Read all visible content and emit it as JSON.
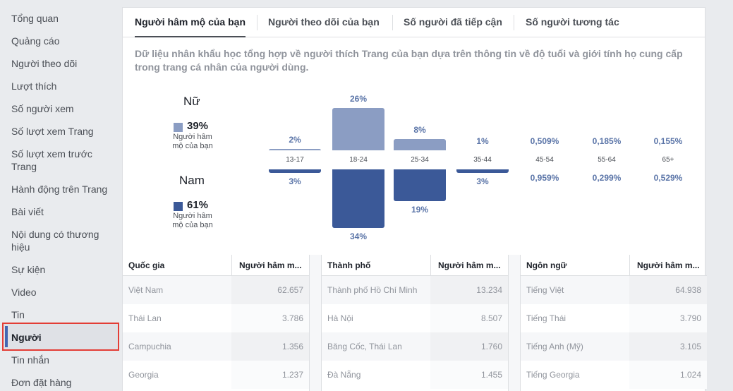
{
  "sidebar": {
    "items": [
      {
        "label": "Tổng quan"
      },
      {
        "label": "Quảng cáo"
      },
      {
        "label": "Người theo dõi"
      },
      {
        "label": "Lượt thích"
      },
      {
        "label": "Số người xem"
      },
      {
        "label": "Số lượt xem Trang"
      },
      {
        "label": "Số lượt xem trước Trang"
      },
      {
        "label": "Hành động trên Trang"
      },
      {
        "label": "Bài viết"
      },
      {
        "label": "Nội dung có thương hiệu"
      },
      {
        "label": "Sự kiện"
      },
      {
        "label": "Video"
      },
      {
        "label": "Tin"
      },
      {
        "label": "Người"
      },
      {
        "label": "Tin nhắn"
      },
      {
        "label": "Đơn đặt hàng"
      }
    ],
    "active_index": 13
  },
  "tabs": [
    {
      "label": "Người hâm mộ của bạn",
      "active": true
    },
    {
      "label": "Người theo dõi của bạn",
      "active": false
    },
    {
      "label": "Số người đã tiếp cận",
      "active": false
    },
    {
      "label": "Số người tương tác",
      "active": false
    }
  ],
  "description": "Dữ liệu nhân khẩu học tổng hợp về người thích Trang của bạn dựa trên thông tin về độ tuổi và giới tính họ cung cấp trong trang cá nhân của người dùng.",
  "gender": {
    "female": {
      "title": "Nữ",
      "pct": "39%",
      "sub": "Người hâm mộ của bạn",
      "color": "#8b9dc3"
    },
    "male": {
      "title": "Nam",
      "pct": "61%",
      "sub": "Người hâm mộ của bạn",
      "color": "#3b5998"
    }
  },
  "chart_data": {
    "type": "bar",
    "title": "",
    "categories": [
      "13-17",
      "18-24",
      "25-34",
      "35-44",
      "45-54",
      "55-64",
      "65+"
    ],
    "series": [
      {
        "name": "Nữ",
        "values": [
          2,
          26,
          8,
          1,
          0.509,
          0.185,
          0.155
        ],
        "labels": [
          "2%",
          "26%",
          "8%",
          "1%",
          "0,509%",
          "0,185%",
          "0,155%"
        ],
        "color": "#8b9dc3"
      },
      {
        "name": "Nam",
        "values": [
          3,
          34,
          19,
          3,
          0.959,
          0.299,
          0.529
        ],
        "labels": [
          "3%",
          "34%",
          "19%",
          "3%",
          "0,959%",
          "0,299%",
          "0,529%"
        ],
        "color": "#3b5998"
      }
    ],
    "ylim": [
      0,
      34
    ]
  },
  "tables": [
    {
      "col1": "Quốc gia",
      "col2": "Người hâm m...",
      "rows": [
        {
          "name": "Việt Nam",
          "value": "62.657"
        },
        {
          "name": "Thái Lan",
          "value": "3.786"
        },
        {
          "name": "Campuchia",
          "value": "1.356"
        },
        {
          "name": "Georgia",
          "value": "1.237"
        }
      ]
    },
    {
      "col1": "Thành phố",
      "col2": "Người hâm m...",
      "rows": [
        {
          "name": "Thành phố Hồ Chí Minh",
          "value": "13.234"
        },
        {
          "name": "Hà Nội",
          "value": "8.507"
        },
        {
          "name": "Băng Cốc, Thái Lan",
          "value": "1.760"
        },
        {
          "name": "Đà Nẵng",
          "value": "1.455"
        }
      ]
    },
    {
      "col1": "Ngôn ngữ",
      "col2": "Người hâm m...",
      "rows": [
        {
          "name": "Tiếng Việt",
          "value": "64.938"
        },
        {
          "name": "Tiếng Thái",
          "value": "3.790"
        },
        {
          "name": "Tiếng Anh (Mỹ)",
          "value": "3.105"
        },
        {
          "name": "Tiếng Georgia",
          "value": "1.024"
        }
      ]
    }
  ]
}
